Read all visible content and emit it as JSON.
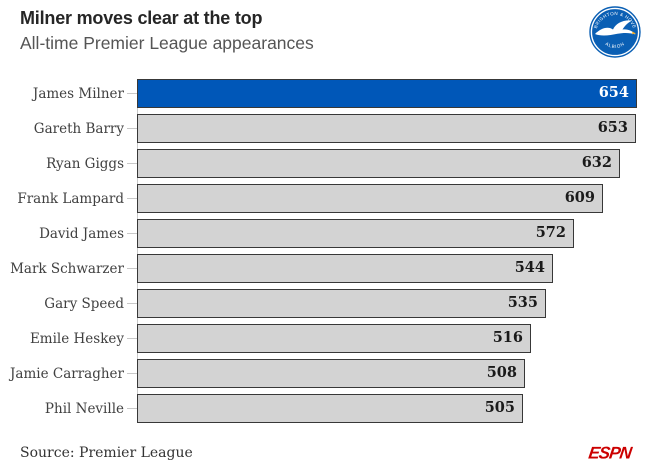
{
  "header": {
    "title": "Milner moves clear at the top",
    "subtitle": "All-time Premier League appearances",
    "club_crest": "brighton-and-hove-albion-crest",
    "crest_text_top": "BRIGHTON & HOVE",
    "crest_text_bottom": "ALBION"
  },
  "chart_data": {
    "type": "bar",
    "orientation": "horizontal",
    "title": "Milner moves clear at the top",
    "subtitle": "All-time Premier League appearances",
    "categories": [
      "James Milner",
      "Gareth Barry",
      "Ryan Giggs",
      "Frank Lampard",
      "David James",
      "Mark Schwarzer",
      "Gary Speed",
      "Emile Heskey",
      "Jamie Carragher",
      "Phil Neville"
    ],
    "values": [
      654,
      653,
      632,
      609,
      572,
      544,
      535,
      516,
      508,
      505
    ],
    "highlight_index": 0,
    "xlim": [
      0,
      654
    ],
    "grid": false,
    "value_labels": "inside-end",
    "legend": "none"
  },
  "colors": {
    "highlight_bar": "#0057B8",
    "bar": "#D3D3D3",
    "bar_border": "#383838",
    "value_on_bar": "#1A1A1A",
    "value_on_highlight": "#FFFFFF",
    "title": "#262626",
    "subtitle": "#555555",
    "label": "#404040",
    "source": "#333333",
    "tick": "#C8C8C8",
    "espn_red": "#CC0000",
    "crest_blue": "#0A5FB4",
    "crest_beak": "#F2A71B"
  },
  "footer": {
    "source": "Source: Premier League",
    "brand": "ESPN"
  }
}
